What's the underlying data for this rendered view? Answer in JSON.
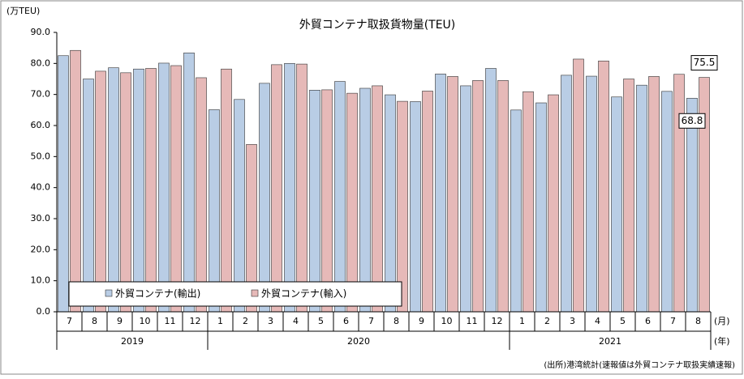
{
  "chart_data": {
    "type": "bar",
    "title": "外貿コンテナ取扱貨物量(TEU)",
    "y_axis_label": "(万TEU)",
    "x_unit_label": "(月)",
    "group_unit_label": "(年)",
    "source": "(出所)港湾統計(速報値は外貿コンテナ取扱実績速報)",
    "categories": [
      "7",
      "8",
      "9",
      "10",
      "11",
      "12",
      "1",
      "2",
      "3",
      "4",
      "5",
      "6",
      "7",
      "8",
      "9",
      "10",
      "11",
      "12",
      "1",
      "2",
      "3",
      "4",
      "5",
      "6",
      "7",
      "8"
    ],
    "year_labels": [
      "2019",
      null,
      null,
      null,
      null,
      null,
      "2020",
      null,
      null,
      null,
      null,
      null,
      null,
      null,
      null,
      null,
      null,
      null,
      "2021",
      null,
      null,
      null,
      null,
      null,
      null,
      null
    ],
    "series": [
      {
        "name": "外貿コンテナ(輸出)",
        "color": "#b9cde5",
        "values": [
          82.5,
          75.0,
          78.6,
          78.2,
          80.1,
          83.4,
          65.1,
          68.4,
          73.6,
          80.0,
          71.4,
          74.2,
          72.0,
          69.9,
          67.7,
          76.6,
          72.8,
          78.4,
          65.0,
          67.3,
          76.2,
          75.9,
          69.2,
          73.0,
          71.0,
          68.8
        ]
      },
      {
        "name": "外貿コンテナ(輸入)",
        "color": "#e6b9b8",
        "values": [
          84.2,
          77.5,
          77.0,
          78.4,
          79.3,
          75.4,
          78.2,
          53.9,
          79.6,
          79.8,
          71.5,
          70.4,
          72.8,
          67.8,
          71.1,
          75.8,
          74.5,
          74.5,
          70.9,
          69.9,
          81.4,
          80.8,
          75.0,
          75.8,
          76.5,
          75.5
        ]
      }
    ],
    "ylim": [
      0,
      90
    ],
    "yticks": [
      {
        "value": 0,
        "label": "0.0"
      },
      {
        "value": 10,
        "label": "10.0"
      },
      {
        "value": 20,
        "label": "20.0"
      },
      {
        "value": 30,
        "label": "30.0"
      },
      {
        "value": 40,
        "label": "40.0"
      },
      {
        "value": 50,
        "label": "50.0"
      },
      {
        "value": 60,
        "label": "60.0"
      },
      {
        "value": 70,
        "label": "70.0"
      },
      {
        "value": 80,
        "label": "80.0"
      },
      {
        "value": 90,
        "label": "90.0"
      }
    ],
    "grid": false
  }
}
